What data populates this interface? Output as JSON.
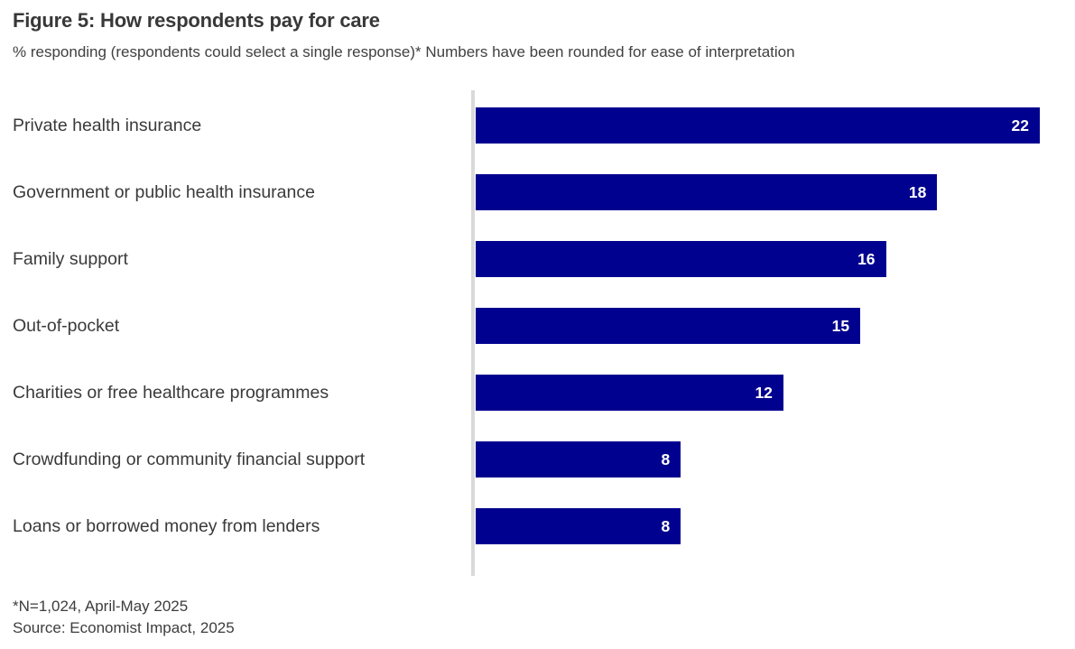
{
  "chart_data": {
    "type": "bar",
    "orientation": "horizontal",
    "title": "Figure 5: How respondents pay for care",
    "subtitle": "% responding (respondents could select a single response)* Numbers have been rounded for ease of interpretation",
    "categories": [
      "Private health insurance",
      "Government or public health insurance",
      "Family support",
      "Out-of-pocket",
      "Charities or free healthcare programmes",
      "Crowdfunding or community financial support",
      "Loans or borrowed money from lenders"
    ],
    "values": [
      22,
      18,
      16,
      15,
      12,
      8,
      8
    ],
    "xlim": [
      0,
      22
    ],
    "grid": false,
    "legend_position": "none",
    "bar_color": "#01018f",
    "value_label_color": "#ffffff",
    "axis_line_color": "#d9d9d9",
    "footnote": "*N=1,024, April-May 2025",
    "source": "Source: Economist Impact, 2025"
  }
}
